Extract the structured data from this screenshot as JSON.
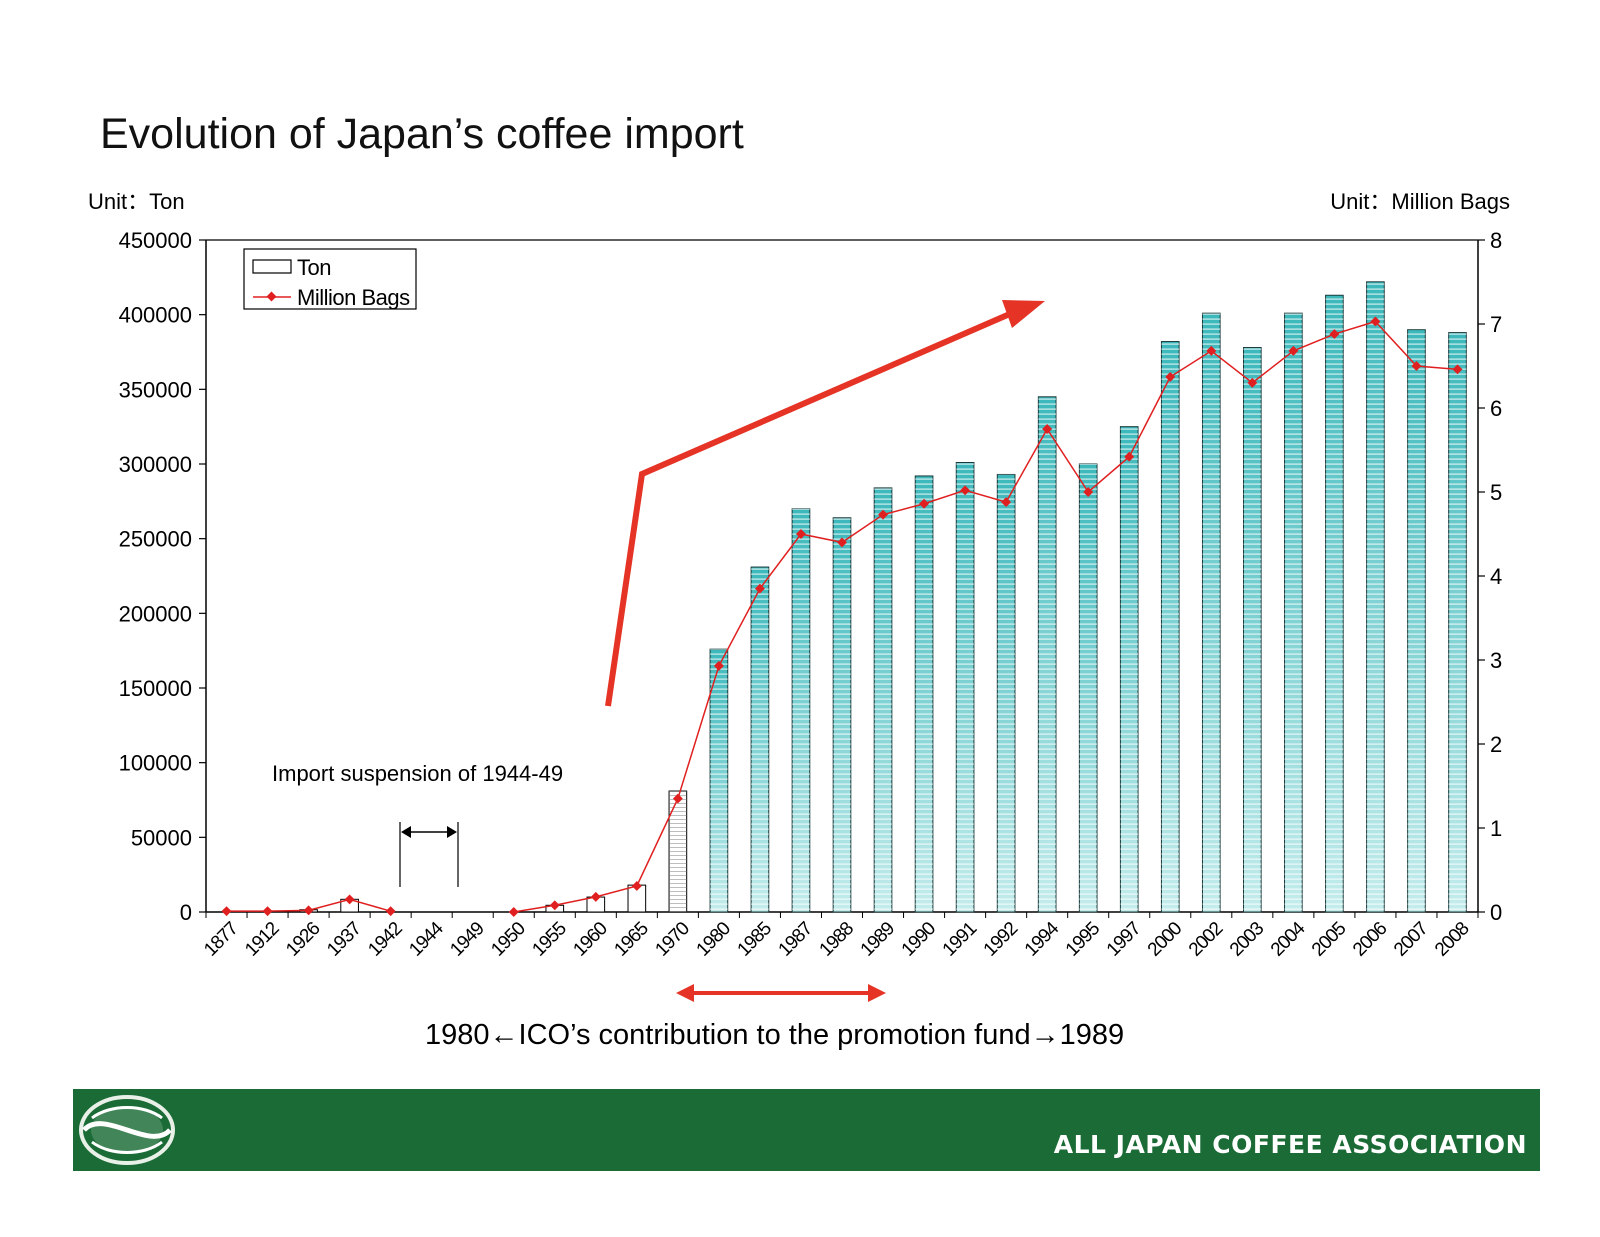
{
  "colors": {
    "bar_fill": "#3cb8bb",
    "bar_fill_light": "#c4ecec",
    "line": "#e02020",
    "arrow": "#e53325",
    "footer_bg": "#1a6b35"
  },
  "chart_data": {
    "type": "bar",
    "title": "Evolution of Japan’s coffee import",
    "y_left_unit": "Unit：Ton",
    "y_right_unit": "Unit：Million Bags",
    "ylim": [
      0,
      450000
    ],
    "ylim_right": [
      0,
      8
    ],
    "yticks": [
      "450000",
      "400000",
      "350000",
      "300000",
      "250000",
      "200000",
      "150000",
      "100000",
      "50000",
      "0"
    ],
    "yticks_right": [
      "8",
      "7",
      "6",
      "5",
      "4",
      "3",
      "2",
      "1",
      "0"
    ],
    "categories": [
      "1877",
      "1912",
      "1926",
      "1937",
      "1942",
      "1944",
      "1949",
      "1950",
      "1955",
      "1960",
      "1965",
      "1970",
      "1980",
      "1985",
      "1987",
      "1988",
      "1989",
      "1990",
      "1991",
      "1992",
      "1994",
      "1995",
      "1997",
      "2000",
      "2002",
      "2003",
      "2004",
      "2005",
      "2006",
      "2007",
      "2008"
    ],
    "series": [
      {
        "name": "Ton",
        "type": "bar",
        "values": [
          0,
          0,
          1500,
          8500,
          0,
          0,
          0,
          0,
          4500,
          10000,
          18000,
          81000,
          176000,
          231000,
          270000,
          264000,
          284000,
          292000,
          301000,
          293000,
          345000,
          300000,
          325000,
          382000,
          401000,
          378000,
          401000,
          413000,
          422000,
          390000,
          388000
        ]
      },
      {
        "name": "Million Bags",
        "type": "line",
        "values": [
          0.01,
          0.01,
          0.02,
          0.15,
          0.01,
          null,
          null,
          0.0,
          0.08,
          0.18,
          0.31,
          1.35,
          2.93,
          3.85,
          4.5,
          4.4,
          4.73,
          4.86,
          5.02,
          4.88,
          5.75,
          5.0,
          5.42,
          6.37,
          6.68,
          6.3,
          6.68,
          6.88,
          7.03,
          6.5,
          6.46
        ]
      }
    ],
    "legend_position": "top-left",
    "grid": false
  },
  "annotations": {
    "suspension": "Import suspension of 1944-49",
    "ico": "1980←ICO’s contribution to the promotion fund→1989"
  },
  "footer": {
    "association": "ALL JAPAN COFFEE ASSOCIATION",
    "logo_icon": "coffee-bean-logo-icon"
  }
}
